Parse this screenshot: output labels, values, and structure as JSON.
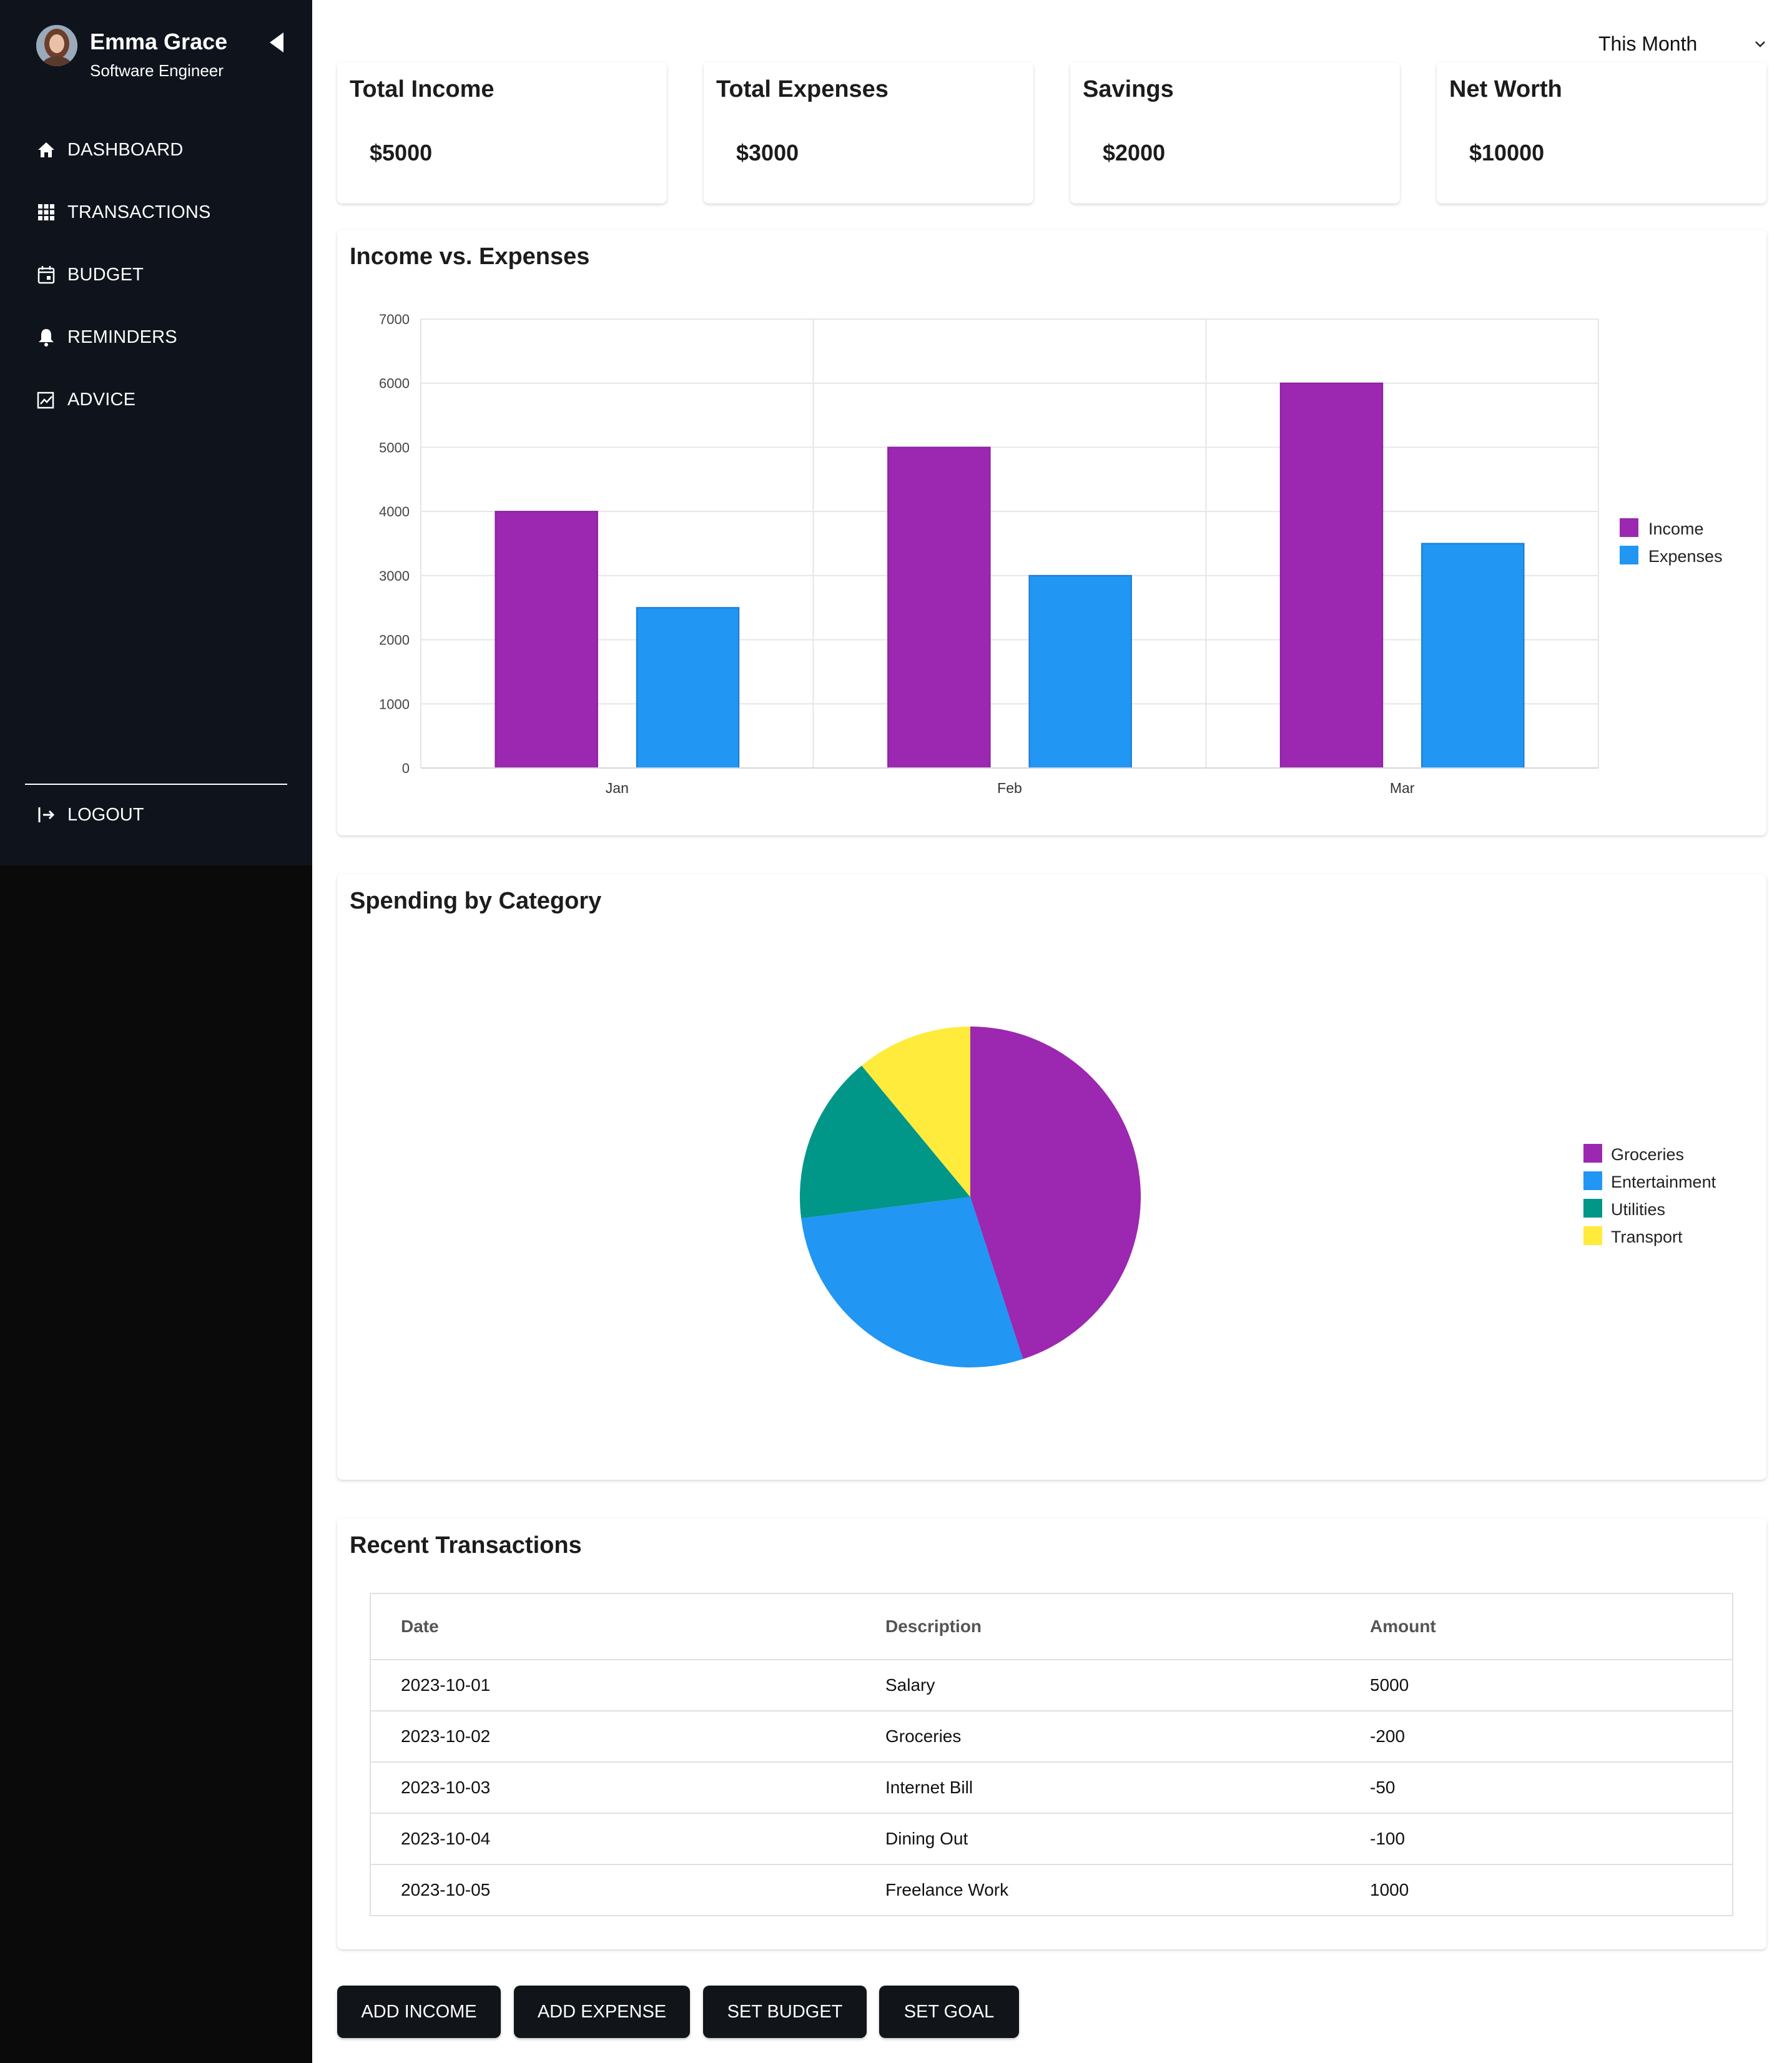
{
  "sidebar": {
    "user": {
      "name": "Emma Grace",
      "role": "Software Engineer"
    },
    "items": [
      {
        "label": "DASHBOARD",
        "icon": "home-icon"
      },
      {
        "label": "TRANSACTIONS",
        "icon": "grid-icon"
      },
      {
        "label": "BUDGET",
        "icon": "calendar-icon"
      },
      {
        "label": "REMINDERS",
        "icon": "bell-icon"
      },
      {
        "label": "ADVICE",
        "icon": "chart-edit-icon"
      }
    ],
    "logout": {
      "label": "LOGOUT",
      "icon": "logout-icon"
    }
  },
  "header": {
    "period": "This Month"
  },
  "stats": [
    {
      "title": "Total Income",
      "value": "$5000"
    },
    {
      "title": "Total Expenses",
      "value": "$3000"
    },
    {
      "title": "Savings",
      "value": "$2000"
    },
    {
      "title": "Net Worth",
      "value": "$10000"
    }
  ],
  "income_chart": {
    "title": "Income vs. Expenses"
  },
  "category_chart": {
    "title": "Spending by Category"
  },
  "chart_data": [
    {
      "type": "bar",
      "title": "Income vs. Expenses",
      "categories": [
        "Jan",
        "Feb",
        "Mar"
      ],
      "series": [
        {
          "name": "Income",
          "values": [
            4000,
            5000,
            6000
          ],
          "color": "#9c27b0"
        },
        {
          "name": "Expenses",
          "values": [
            2500,
            3000,
            3500
          ],
          "color": "#2196f3"
        }
      ],
      "ylim": [
        0,
        7000
      ],
      "yticks": [
        0,
        1000,
        2000,
        3000,
        4000,
        5000,
        6000,
        7000
      ],
      "grid": true,
      "legend": "right"
    },
    {
      "type": "pie",
      "title": "Spending by Category",
      "labels": [
        "Groceries",
        "Entertainment",
        "Utilities",
        "Transport"
      ],
      "values": [
        45,
        28,
        16,
        11
      ],
      "colors": [
        "#9c27b0",
        "#2196f3",
        "#009688",
        "#ffeb3b"
      ],
      "legend": "right"
    }
  ],
  "transactions": {
    "title": "Recent Transactions",
    "columns": [
      "Date",
      "Description",
      "Amount"
    ],
    "rows": [
      [
        "2023-10-01",
        "Salary",
        "5000"
      ],
      [
        "2023-10-02",
        "Groceries",
        "-200"
      ],
      [
        "2023-10-03",
        "Internet Bill",
        "-50"
      ],
      [
        "2023-10-04",
        "Dining Out",
        "-100"
      ],
      [
        "2023-10-05",
        "Freelance Work",
        "1000"
      ]
    ]
  },
  "actions": [
    "ADD INCOME",
    "ADD EXPENSE",
    "SET BUDGET",
    "SET GOAL"
  ]
}
